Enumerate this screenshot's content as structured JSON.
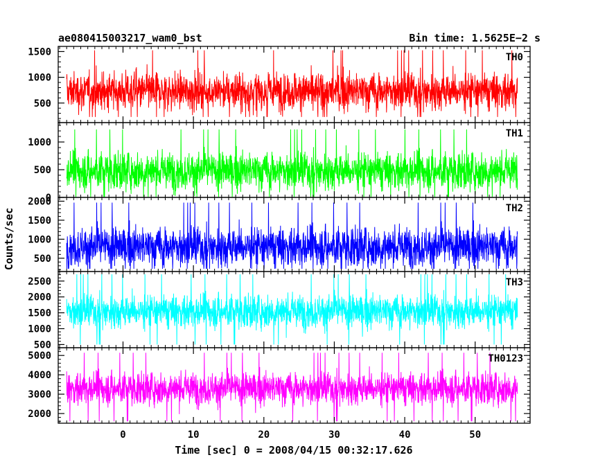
{
  "header": {
    "title": "ae080415003217_wam0_bst",
    "bin_time": "Bin time: 1.5625E−2 s"
  },
  "axes": {
    "ylabel": "Counts/sec",
    "xlabel": "Time [sec] 0 = 2008/04/15 00:32:17.626",
    "x_ticks": [
      0,
      10,
      20,
      30,
      40,
      50
    ],
    "x_range": [
      -9.2,
      57.8
    ]
  },
  "chart_data": {
    "type": "line",
    "x_start": -8.0,
    "x_end": 56.0,
    "bin_time": 0.015625,
    "xlabel": "Time [sec] 0 = 2008/04/15 00:32:17.626",
    "ylabel": "Counts/sec",
    "grid": false,
    "series": [
      {
        "name": "TH0",
        "color": "#ff0000",
        "ylim": [
          120,
          1600
        ],
        "yticks": [
          500,
          1000,
          1500
        ],
        "mean": 730,
        "low": 230,
        "high": 1550
      },
      {
        "name": "TH1",
        "color": "#00ff00",
        "ylim": [
          0,
          1350
        ],
        "yticks": [
          0,
          500,
          1000
        ],
        "mean": 480,
        "low": 10,
        "high": 1250
      },
      {
        "name": "TH2",
        "color": "#0000ff",
        "ylim": [
          150,
          2100
        ],
        "yticks": [
          500,
          1000,
          1500,
          2000
        ],
        "mean": 800,
        "low": 220,
        "high": 2000
      },
      {
        "name": "TH3",
        "color": "#00ffff",
        "ylim": [
          400,
          2800
        ],
        "yticks": [
          500,
          1000,
          1500,
          2000,
          2500
        ],
        "mean": 1550,
        "low": 500,
        "high": 2750
      },
      {
        "name": "TH0123",
        "color": "#ff00ff",
        "ylim": [
          1500,
          5400
        ],
        "yticks": [
          2000,
          3000,
          4000,
          5000
        ],
        "mean": 3300,
        "low": 1600,
        "high": 5200
      }
    ]
  }
}
